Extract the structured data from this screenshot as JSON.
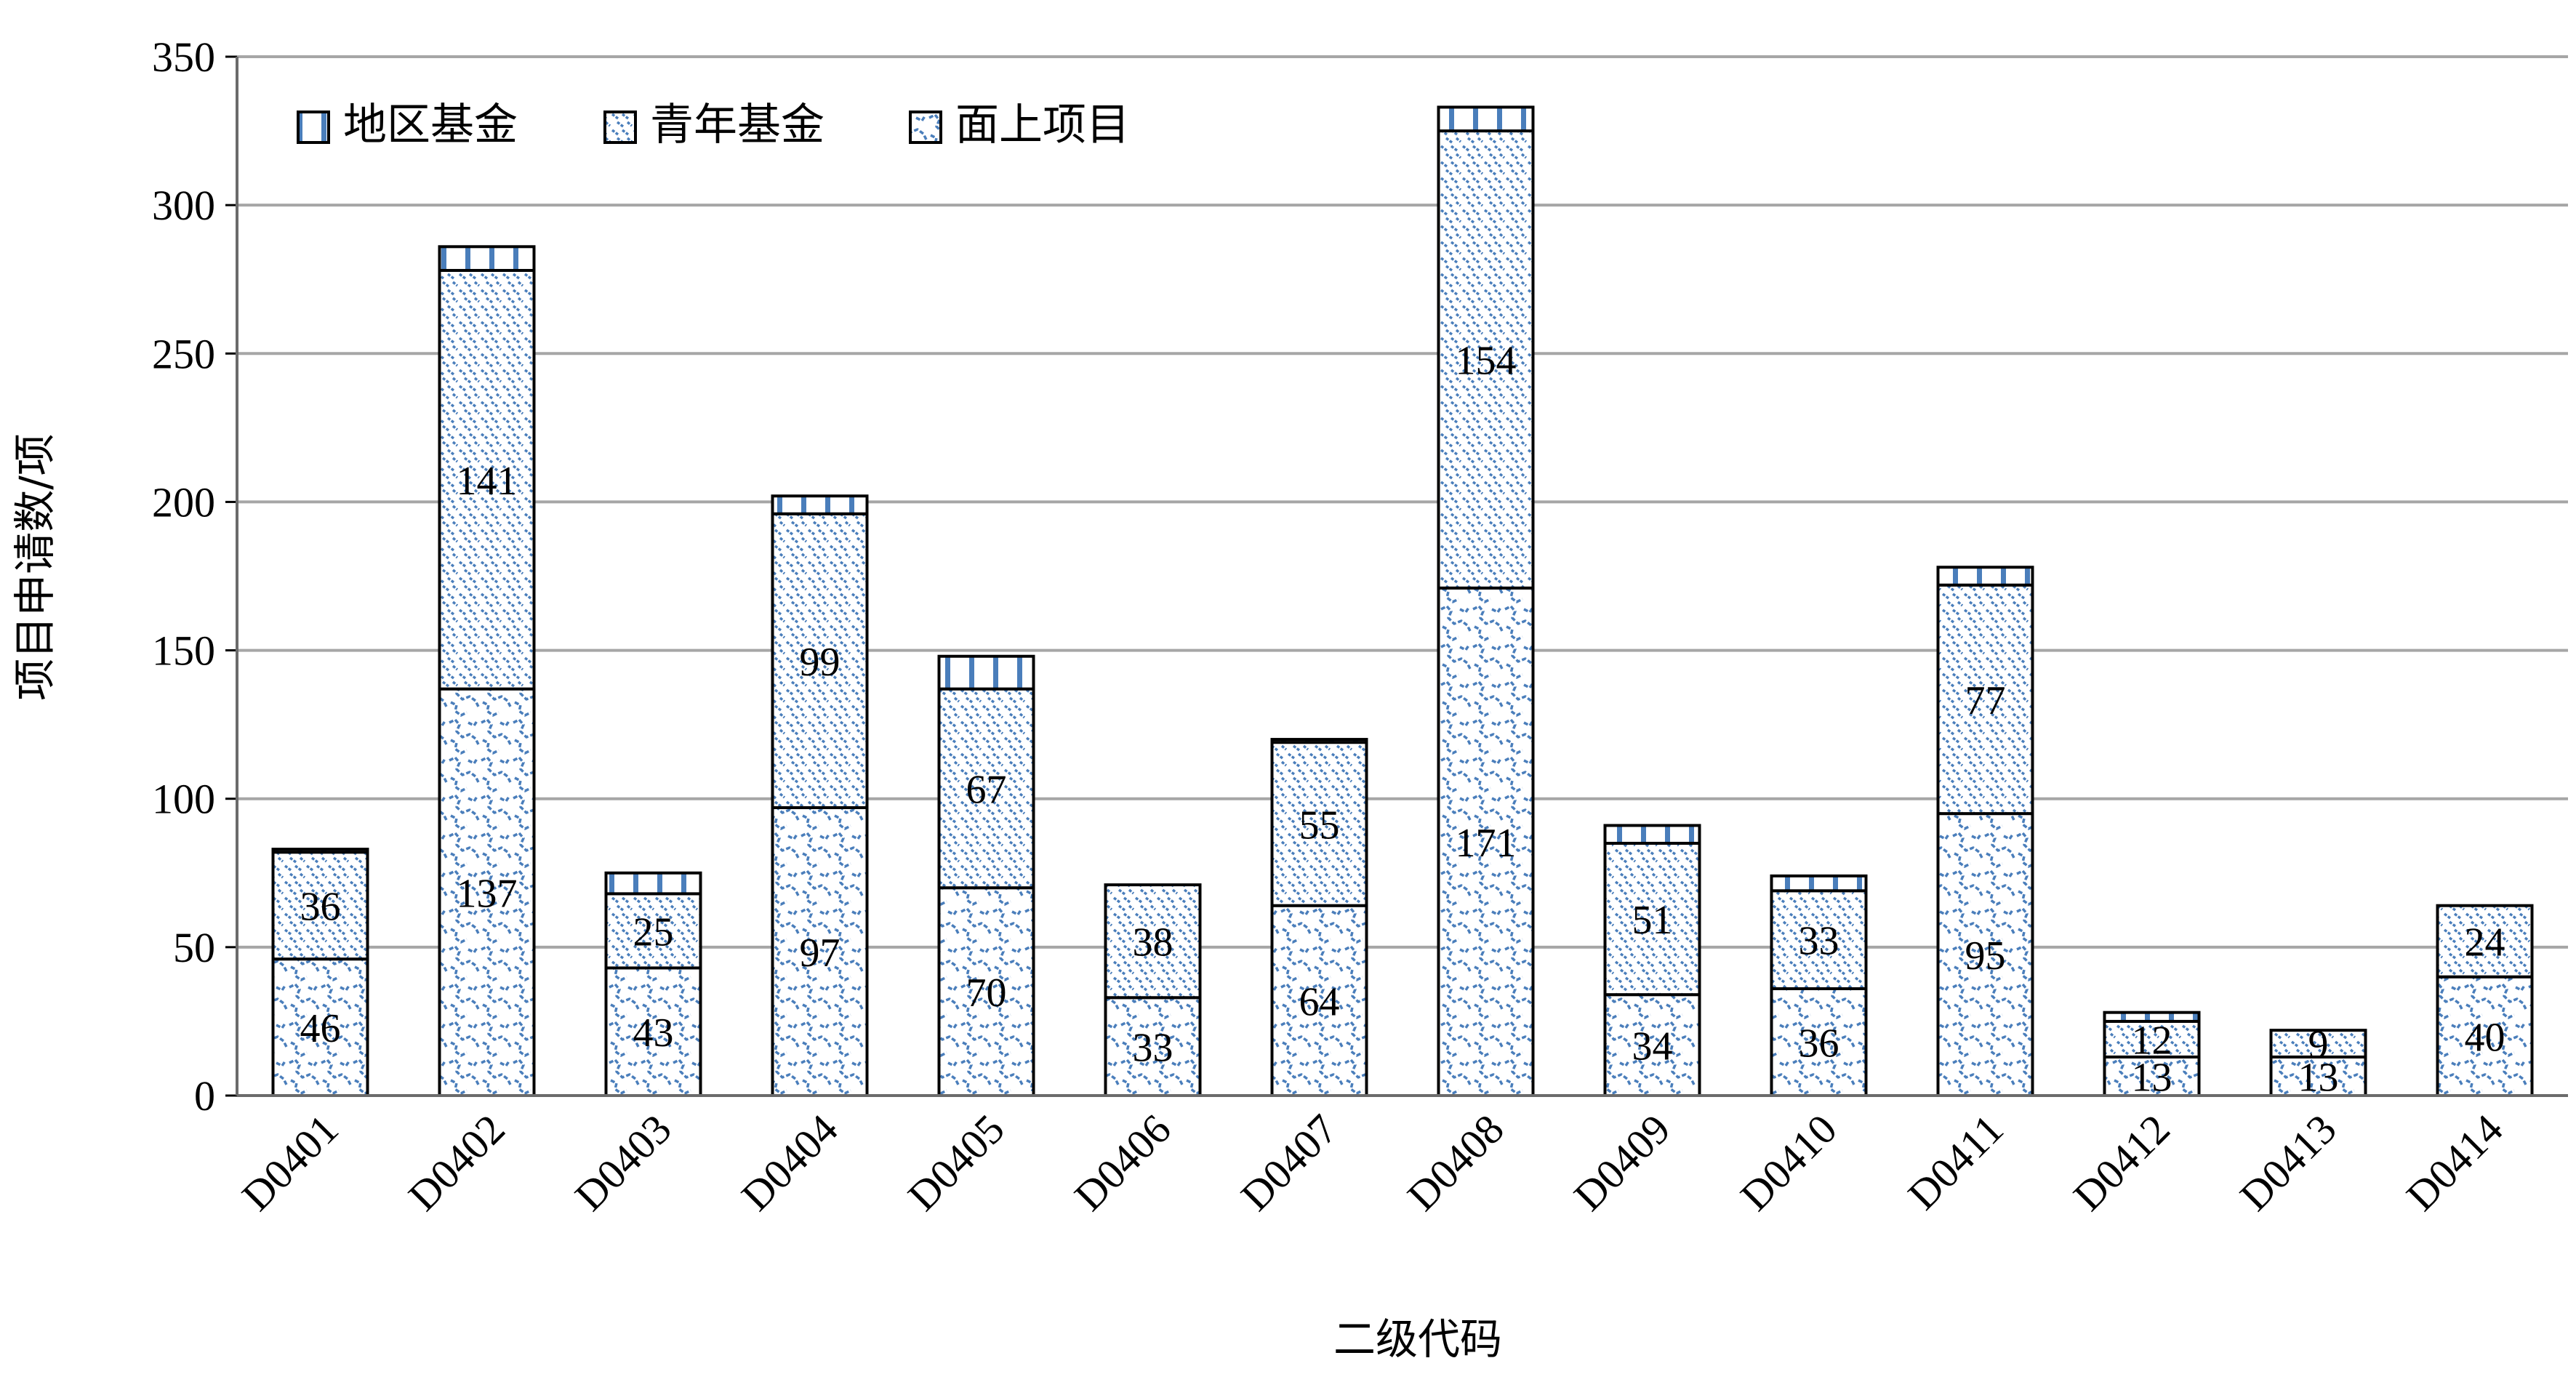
{
  "chart_data": {
    "type": "bar",
    "stacked": true,
    "categories": [
      "D0401",
      "D0402",
      "D0403",
      "D0404",
      "D0405",
      "D0406",
      "D0407",
      "D0408",
      "D0409",
      "D0410",
      "D0411",
      "D0412",
      "D0413",
      "D0414"
    ],
    "series": [
      {
        "name": "面上项目",
        "values": [
          46,
          137,
          43,
          97,
          70,
          33,
          64,
          171,
          34,
          36,
          95,
          13,
          13,
          40
        ],
        "pattern": "wave",
        "show_labels": true
      },
      {
        "name": "青年基金",
        "values": [
          36,
          141,
          25,
          99,
          67,
          38,
          55,
          154,
          51,
          33,
          77,
          12,
          9,
          24
        ],
        "pattern": "dash",
        "show_labels": true
      },
      {
        "name": "地区基金",
        "values": [
          1,
          8,
          7,
          6,
          11,
          0,
          1,
          8,
          6,
          5,
          6,
          3,
          0,
          0
        ],
        "pattern": "bars",
        "show_labels": false
      }
    ],
    "legend": {
      "order": [
        "地区基金",
        "青年基金",
        "面上项目"
      ],
      "placement": "top-left"
    },
    "xlabel": "二级代码",
    "ylabel": "项目申请数/项",
    "ylim": [
      0,
      350
    ],
    "yticks": [
      0,
      50,
      100,
      150,
      200,
      250,
      300,
      350
    ],
    "grid": true,
    "colors": {
      "accent": "#4A7EBB",
      "grid": "#A6A6A6",
      "border": "#000000"
    }
  }
}
